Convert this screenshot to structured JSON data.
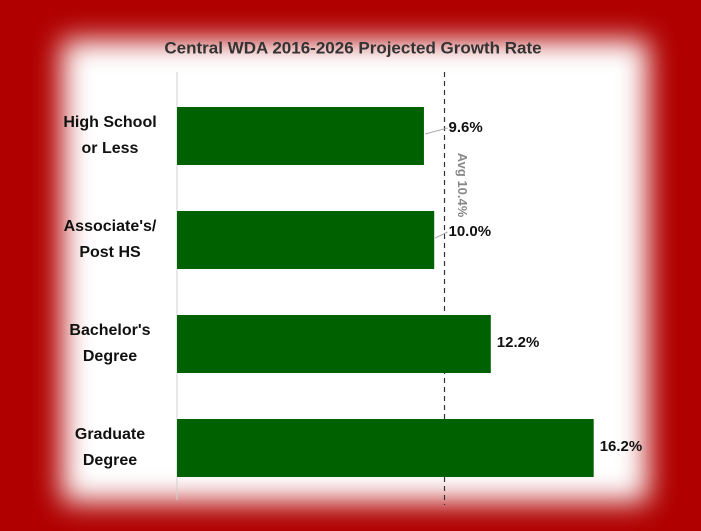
{
  "chart_data": {
    "type": "barh",
    "title": "Central WDA 2016-2026 Projected Growth Rate",
    "categories": [
      [
        "High School",
        "or Less"
      ],
      [
        "Associate's/",
        "Post HS"
      ],
      [
        "Bachelor's",
        "Degree"
      ],
      [
        "Graduate",
        "Degree"
      ]
    ],
    "values": [
      9.6,
      10.0,
      12.2,
      16.2
    ],
    "value_labels": [
      "9.6%",
      "10.0%",
      "12.2%",
      "16.2%"
    ],
    "color": "#006100",
    "xlim": [
      0,
      18
    ],
    "annotations": [
      {
        "value": 10.4,
        "label": "Avg 10.4%"
      }
    ]
  }
}
